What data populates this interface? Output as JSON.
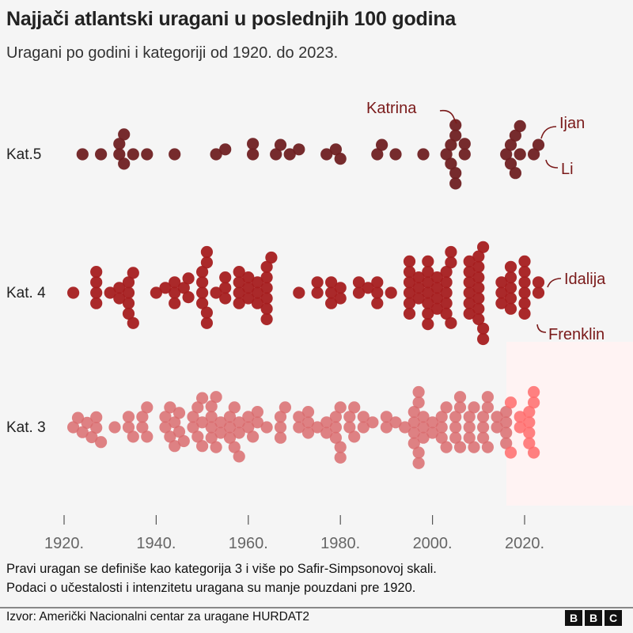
{
  "title": "Najjači atlantski uragani u poslednjih 100 godina",
  "subtitle": "Uragani po godini i kategoriji od 1920. do 2023.",
  "note_lines": [
    "Pravi uragan se definiše kao kategorija 3 i više po Safir-Simpsonovoj skali.",
    "Podaci o učestalosti i intenzitetu uragana su manje pouzdani pre 1920."
  ],
  "source": "Izvor: Američki Nacionalni centar za uragane HURDAT2",
  "logo": "BBC",
  "chart_data": {
    "type": "scatter",
    "subtype": "beeswarm",
    "title": "Najjači atlantski uragani u poslednjih 100 godina",
    "subtitle": "Uragani po godini i kategoriji od 1920. do 2023.",
    "x_ticks": [
      "1920.",
      "1940.",
      "1960.",
      "1980.",
      "2000.",
      "2020."
    ],
    "x_tick_values": [
      1920,
      1940,
      1960,
      1980,
      2000,
      2020
    ],
    "xlim": [
      1920,
      2023
    ],
    "grid": false,
    "series": [
      {
        "name": "Kat.5",
        "color": "#6f2022",
        "years": [
          1924,
          1928,
          1932,
          1932,
          1933,
          1933,
          1935,
          1938,
          1944,
          1953,
          1955,
          1961,
          1961,
          1966,
          1967,
          1969,
          1971,
          1977,
          1979,
          1980,
          1988,
          1989,
          1992,
          1998,
          2003,
          2004,
          2004,
          2005,
          2005,
          2005,
          2005,
          2007,
          2007,
          2016,
          2017,
          2017,
          2018,
          2018,
          2019,
          2019,
          2022,
          2023
        ]
      },
      {
        "name": "Kat. 4",
        "color": "#a51d1f",
        "years": [
          1922,
          1927,
          1927,
          1927,
          1927,
          1930,
          1932,
          1932,
          1934,
          1934,
          1934,
          1934,
          1935,
          1935,
          1940,
          1942,
          1944,
          1944,
          1944,
          1946,
          1947,
          1947,
          1950,
          1950,
          1950,
          1950,
          1951,
          1951,
          1951,
          1951,
          1953,
          1955,
          1955,
          1955,
          1958,
          1958,
          1958,
          1958,
          1960,
          1960,
          1960,
          1962,
          1962,
          1962,
          1964,
          1964,
          1964,
          1964,
          1964,
          1964,
          1965,
          1971,
          1975,
          1975,
          1978,
          1978,
          1978,
          1980,
          1980,
          1984,
          1984,
          1986,
          1988,
          1988,
          1988,
          1991,
          1995,
          1995,
          1995,
          1995,
          1995,
          1995,
          1997,
          1997,
          1997,
          1999,
          1999,
          1999,
          1999,
          1999,
          1999,
          1999,
          2001,
          2001,
          2001,
          2001,
          2003,
          2003,
          2003,
          2003,
          2003,
          2004,
          2004,
          2004,
          2008,
          2008,
          2008,
          2008,
          2008,
          2008,
          2010,
          2010,
          2010,
          2010,
          2010,
          2010,
          2010,
          2011,
          2011,
          2011,
          2015,
          2015,
          2015,
          2017,
          2017,
          2017,
          2017,
          2017,
          2020,
          2020,
          2020,
          2020,
          2020,
          2020,
          2023,
          2023
        ]
      },
      {
        "name": "Kat. 3",
        "color": "#d96c6e",
        "years": [
          1922,
          1923,
          1924,
          1925,
          1926,
          1927,
          1927,
          1928,
          1931,
          1934,
          1934,
          1935,
          1937,
          1937,
          1938,
          1938,
          1942,
          1942,
          1943,
          1943,
          1944,
          1944,
          1945,
          1945,
          1946,
          1948,
          1948,
          1949,
          1949,
          1950,
          1950,
          1950,
          1952,
          1952,
          1952,
          1952,
          1953,
          1953,
          1954,
          1954,
          1956,
          1956,
          1956,
          1957,
          1957,
          1958,
          1958,
          1958,
          1960,
          1960,
          1961,
          1962,
          1962,
          1964,
          1967,
          1967,
          1967,
          1968,
          1971,
          1971,
          1973,
          1973,
          1973,
          1975,
          1977,
          1977,
          1979,
          1979,
          1979,
          1980,
          1980,
          1980,
          1982,
          1982,
          1983,
          1983,
          1985,
          1985,
          1987,
          1990,
          1990,
          1992,
          1994,
          1996,
          1996,
          1996,
          1996,
          1997,
          1997,
          1997,
          1997,
          1998,
          1998,
          1998,
          2000,
          2000,
          2002,
          2002,
          2002,
          2003,
          2003,
          2005,
          2005,
          2005,
          2006,
          2006,
          2006,
          2008,
          2008,
          2008,
          2009,
          2009,
          2011,
          2011,
          2011,
          2012,
          2012,
          2012,
          2014,
          2014,
          2016,
          2016,
          2016,
          2016,
          2017,
          2017,
          2019,
          2019,
          2021,
          2021,
          2021,
          2021,
          2022,
          2022,
          2022
        ]
      }
    ],
    "annotations": [
      {
        "label": "Katrina",
        "series": "Kat.5",
        "year": 2005
      },
      {
        "label": "Ijan",
        "series": "Kat.5",
        "year": 2022
      },
      {
        "label": "Li",
        "series": "Kat.5",
        "year": 2023
      },
      {
        "label": "Idalija",
        "series": "Kat. 4",
        "year": 2023
      },
      {
        "label": "Frenklin",
        "series": "Kat. 4",
        "year": 2023
      }
    ],
    "annotation_color": "#7a1a1a",
    "highlight_color": "#ff6b6b"
  }
}
